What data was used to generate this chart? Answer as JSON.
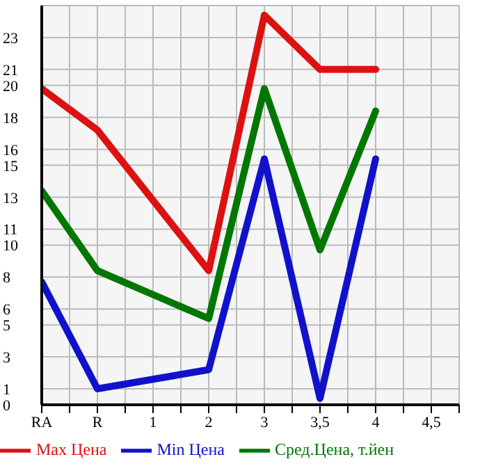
{
  "chart_data": {
    "type": "line",
    "categories": [
      "RA",
      "R",
      "1",
      "2",
      "3",
      "3,5",
      "4",
      "4,5"
    ],
    "series": [
      {
        "name": "Max Цена",
        "color": "#dd1111",
        "values": [
          19.8,
          17.2,
          null,
          8.4,
          24.4,
          21,
          21,
          null
        ]
      },
      {
        "name": "Min Цена",
        "color": "#1111cc",
        "values": [
          7.7,
          1,
          null,
          2.2,
          15.4,
          0.4,
          15.4,
          null
        ]
      },
      {
        "name": "Сред.Цена, т.йен",
        "color": "#007700",
        "values": [
          13.4,
          8.4,
          null,
          5.4,
          19.8,
          9.7,
          18.4,
          null
        ]
      }
    ],
    "ylim": [
      0,
      25
    ],
    "yticks": [
      0,
      1,
      3,
      5,
      6,
      8,
      10,
      11,
      13,
      15,
      16,
      18,
      20,
      21,
      23
    ],
    "grid": true,
    "legend": "bottom",
    "marker": "none",
    "line_style": "solid"
  }
}
